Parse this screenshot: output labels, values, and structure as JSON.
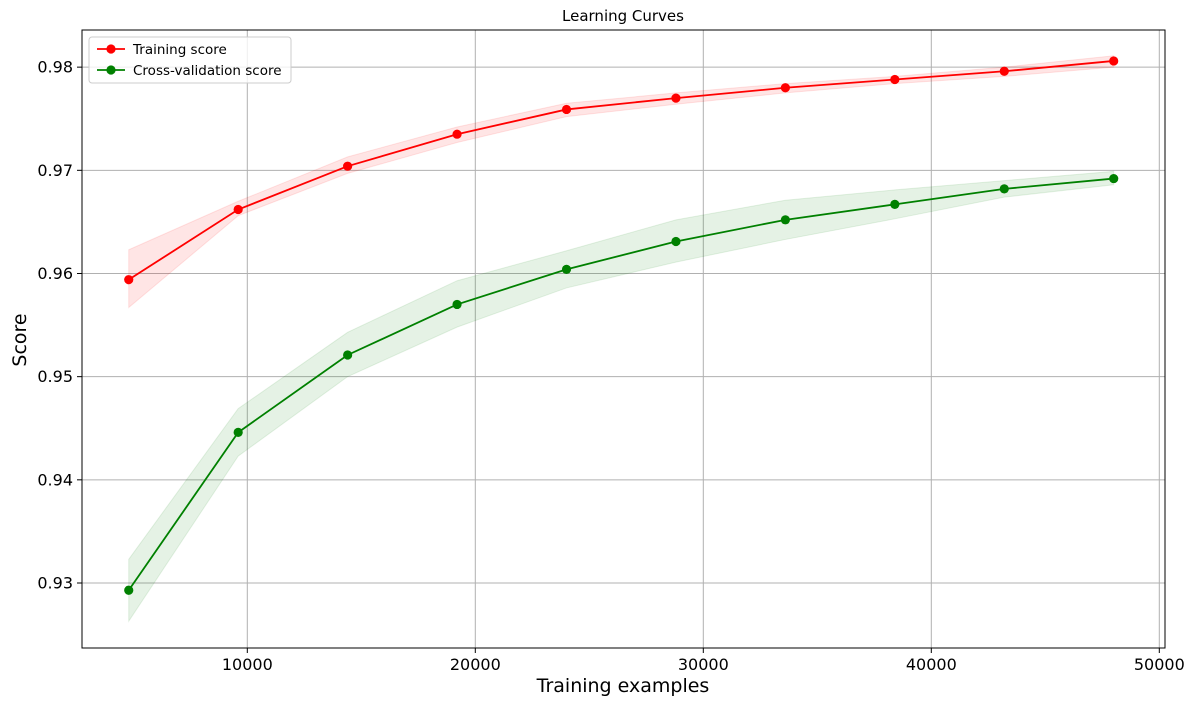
{
  "chart_data": {
    "type": "line",
    "title": "Learning Curves",
    "xlabel": "Training examples",
    "ylabel": "Score",
    "xlim": [
      2750,
      50250
    ],
    "ylim": [
      0.9237,
      0.9836
    ],
    "xticks": [
      10000,
      20000,
      30000,
      40000,
      50000
    ],
    "yticks": [
      0.93,
      0.94,
      0.95,
      0.96,
      0.97,
      0.98
    ],
    "xtick_labels": [
      "10000",
      "20000",
      "30000",
      "40000",
      "50000"
    ],
    "ytick_labels": [
      "0.93",
      "0.94",
      "0.95",
      "0.96",
      "0.97",
      "0.98"
    ],
    "grid": true,
    "legend_position": "top-left",
    "x": [
      4800,
      9600,
      14400,
      19200,
      24000,
      28800,
      33600,
      38400,
      43200,
      48000
    ],
    "series": [
      {
        "name": "Training score",
        "color": "#ff0000",
        "marker": "circle",
        "values": [
          0.9594,
          0.9662,
          0.9704,
          0.9735,
          0.9759,
          0.977,
          0.978,
          0.9788,
          0.9796,
          0.9806
        ],
        "band_upper": [
          0.9623,
          0.967,
          0.9713,
          0.9742,
          0.9765,
          0.9775,
          0.9784,
          0.9791,
          0.98,
          0.9811
        ],
        "band_lower": [
          0.9567,
          0.9656,
          0.9697,
          0.9727,
          0.9752,
          0.9764,
          0.9775,
          0.9784,
          0.9791,
          0.98
        ],
        "band_color": "#ff0000"
      },
      {
        "name": "Cross-validation score",
        "color": "#008000",
        "marker": "circle",
        "values": [
          0.9293,
          0.9446,
          0.9521,
          0.957,
          0.9604,
          0.9631,
          0.9652,
          0.9667,
          0.9682,
          0.9692
        ],
        "band_upper": [
          0.9323,
          0.9469,
          0.9543,
          0.9593,
          0.9622,
          0.9652,
          0.9671,
          0.9681,
          0.969,
          0.9699
        ],
        "band_lower": [
          0.9263,
          0.9423,
          0.95,
          0.9548,
          0.9586,
          0.9611,
          0.9633,
          0.9653,
          0.9674,
          0.9686
        ],
        "band_color": "#008000"
      }
    ]
  }
}
